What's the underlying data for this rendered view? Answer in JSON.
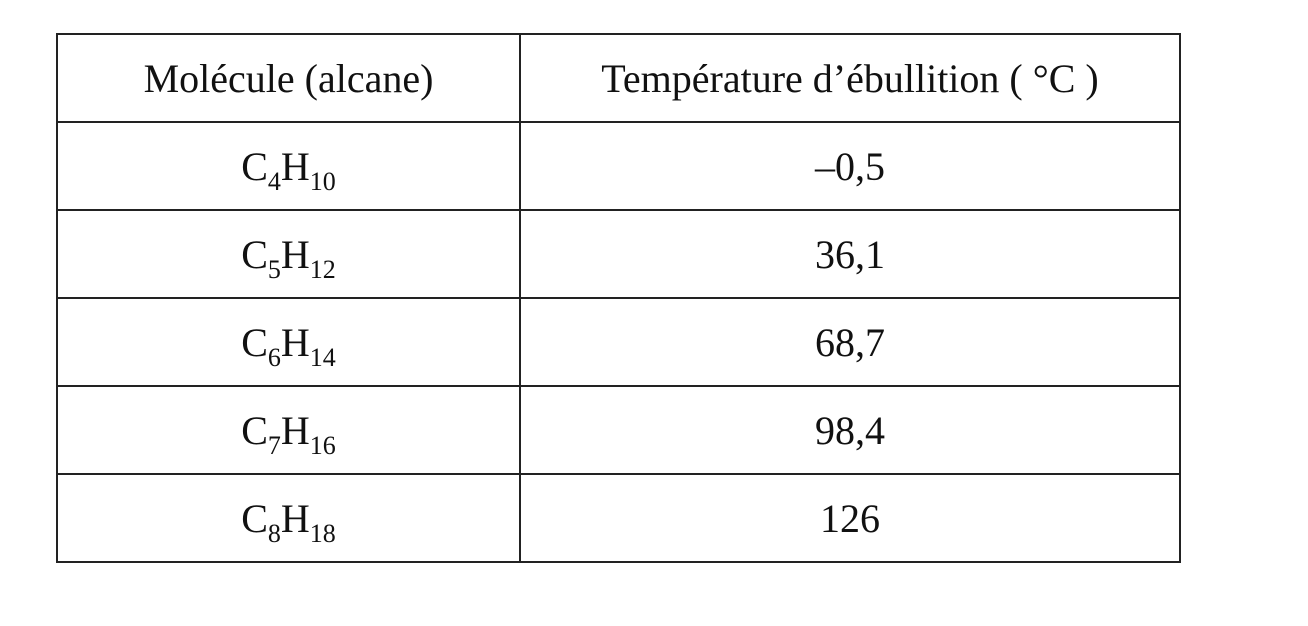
{
  "table": {
    "header": [
      "Molécule (alcane)",
      "Température d’ébullition ( °C )"
    ],
    "rows": [
      {
        "molecule": [
          {
            "symbol": "C",
            "count": "4"
          },
          {
            "symbol": "H",
            "count": "10"
          }
        ],
        "temperature": "–0,5"
      },
      {
        "molecule": [
          {
            "symbol": "C",
            "count": "5"
          },
          {
            "symbol": "H",
            "count": "12"
          }
        ],
        "temperature": "36,1"
      },
      {
        "molecule": [
          {
            "symbol": "C",
            "count": "6"
          },
          {
            "symbol": "H",
            "count": "14"
          }
        ],
        "temperature": "68,7"
      },
      {
        "molecule": [
          {
            "symbol": "C",
            "count": "7"
          },
          {
            "symbol": "H",
            "count": "16"
          }
        ],
        "temperature": "98,4"
      },
      {
        "molecule": [
          {
            "symbol": "C",
            "count": "8"
          },
          {
            "symbol": "H",
            "count": "18"
          }
        ],
        "temperature": "126"
      }
    ]
  }
}
